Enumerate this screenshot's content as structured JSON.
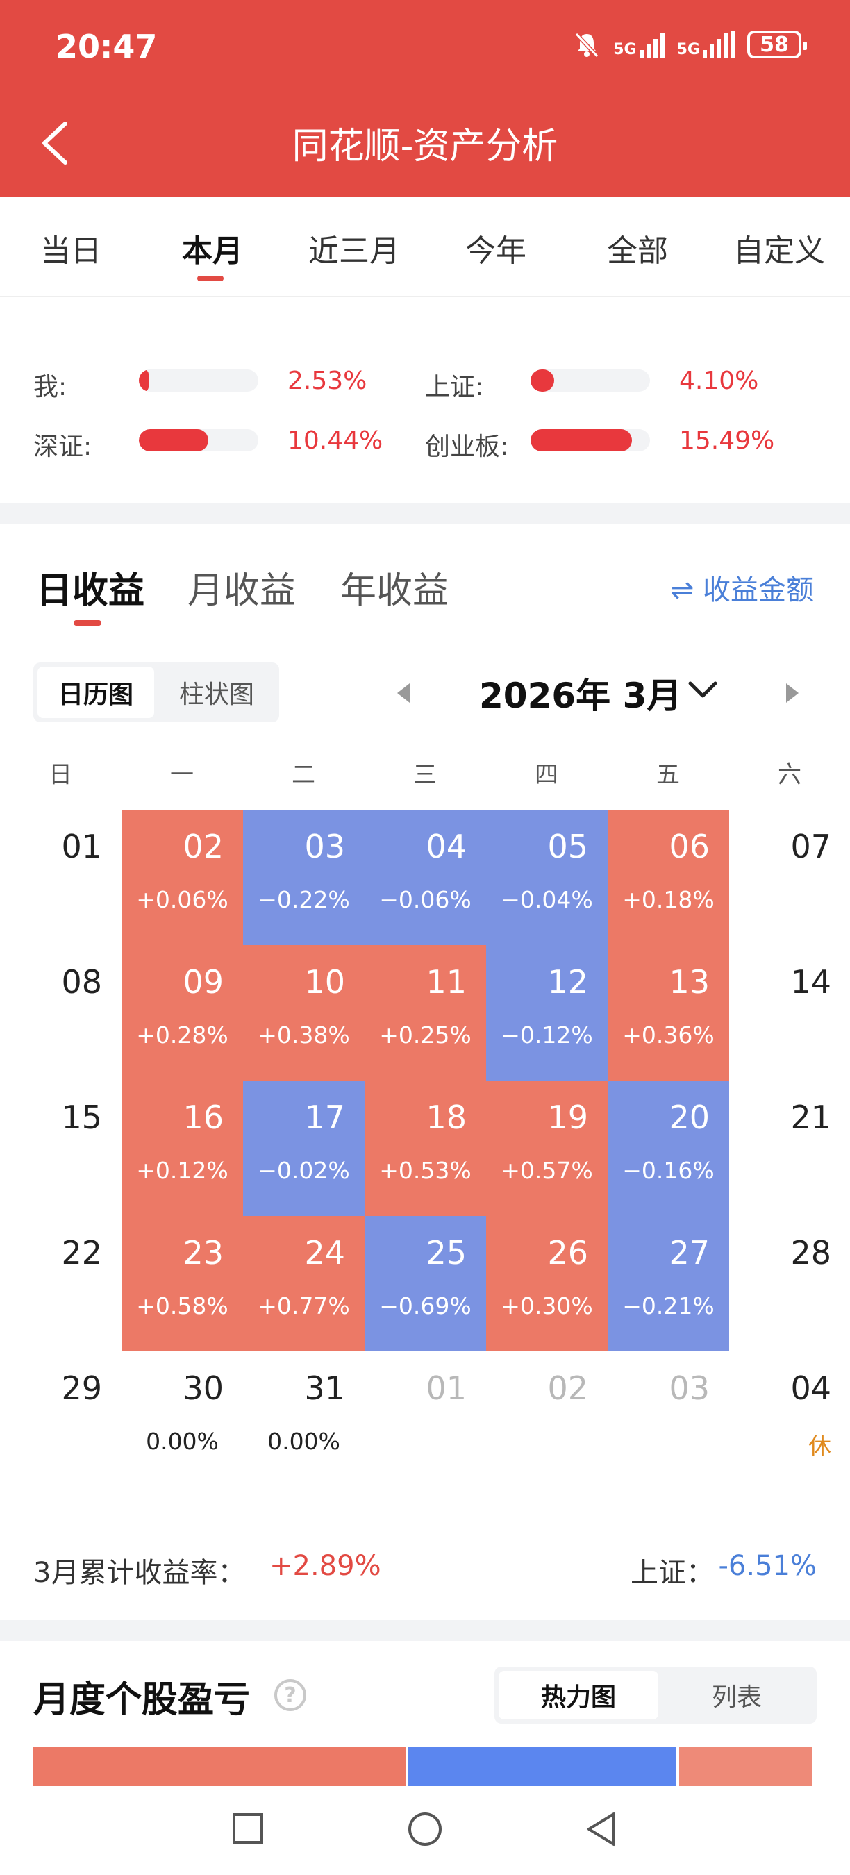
{
  "status_bar": {
    "time": "20:47",
    "net1": "5G",
    "net2": "5G",
    "battery": "58"
  },
  "header": {
    "title": "同花顺-资产分析"
  },
  "period_tabs": [
    "当日",
    "本月",
    "近三月",
    "今年",
    "全部",
    "自定义"
  ],
  "comparison": [
    {
      "label": "我:",
      "value": "2.53%",
      "level": 0.08
    },
    {
      "label": "上证:",
      "value": "4.10%",
      "level": 0.2
    },
    {
      "label": "深证:",
      "value": "10.44%",
      "level": 0.58
    },
    {
      "label": "创业板:",
      "value": "15.49%",
      "level": 0.85
    }
  ],
  "profit_tabs": [
    "日收益",
    "月收益",
    "年收益"
  ],
  "amount_toggle": "⇌ 收益金额",
  "view_switch": [
    "日历图",
    "柱状图"
  ],
  "month_label": "2026年 3月",
  "weekdays": [
    "日",
    "一",
    "二",
    "三",
    "四",
    "五",
    "六"
  ],
  "calendar": [
    [
      {
        "day": "01",
        "val": ""
      },
      {
        "day": "02",
        "val": "+0.06%",
        "type": "pos"
      },
      {
        "day": "03",
        "val": "−0.22%",
        "type": "neg"
      },
      {
        "day": "04",
        "val": "−0.06%",
        "type": "neg"
      },
      {
        "day": "05",
        "val": "−0.04%",
        "type": "neg"
      },
      {
        "day": "06",
        "val": "+0.18%",
        "type": "pos"
      },
      {
        "day": "07",
        "val": ""
      }
    ],
    [
      {
        "day": "08",
        "val": ""
      },
      {
        "day": "09",
        "val": "+0.28%",
        "type": "pos"
      },
      {
        "day": "10",
        "val": "+0.38%",
        "type": "pos"
      },
      {
        "day": "11",
        "val": "+0.25%",
        "type": "pos"
      },
      {
        "day": "12",
        "val": "−0.12%",
        "type": "neg"
      },
      {
        "day": "13",
        "val": "+0.36%",
        "type": "pos"
      },
      {
        "day": "14",
        "val": ""
      }
    ],
    [
      {
        "day": "15",
        "val": ""
      },
      {
        "day": "16",
        "val": "+0.12%",
        "type": "pos"
      },
      {
        "day": "17",
        "val": "−0.02%",
        "type": "neg"
      },
      {
        "day": "18",
        "val": "+0.53%",
        "type": "pos"
      },
      {
        "day": "19",
        "val": "+0.57%",
        "type": "pos"
      },
      {
        "day": "20",
        "val": "−0.16%",
        "type": "neg"
      },
      {
        "day": "21",
        "val": ""
      }
    ],
    [
      {
        "day": "22",
        "val": ""
      },
      {
        "day": "23",
        "val": "+0.58%",
        "type": "pos"
      },
      {
        "day": "24",
        "val": "+0.77%",
        "type": "pos"
      },
      {
        "day": "25",
        "val": "−0.69%",
        "type": "neg"
      },
      {
        "day": "26",
        "val": "+0.30%",
        "type": "pos"
      },
      {
        "day": "27",
        "val": "−0.21%",
        "type": "neg"
      },
      {
        "day": "28",
        "val": ""
      }
    ],
    [
      {
        "day": "29",
        "val": ""
      },
      {
        "day": "30",
        "val": "0.00%"
      },
      {
        "day": "31",
        "val": "0.00%"
      },
      {
        "day": "01",
        "val": "",
        "type": "dim"
      },
      {
        "day": "02",
        "val": "",
        "type": "dim"
      },
      {
        "day": "03",
        "val": "",
        "type": "dim"
      },
      {
        "day": "04",
        "val": "休",
        "type": "holiday"
      }
    ]
  ],
  "cumulative": {
    "label": "3月累计收益率：",
    "value": "+2.89%",
    "index_label": "上证：",
    "index_value": "-6.51%"
  },
  "monthly_stock": {
    "title": "月度个股盈亏",
    "help": "?",
    "switch": [
      "热力图",
      "列表"
    ]
  },
  "heatmap_colors": [
    "#ec7966",
    "#5b86ef",
    "#ee8a78"
  ],
  "colors": {
    "brand": "#e24a43",
    "positive": "#ec7966",
    "negative": "#7b93e2",
    "link": "#4a7fd8"
  }
}
